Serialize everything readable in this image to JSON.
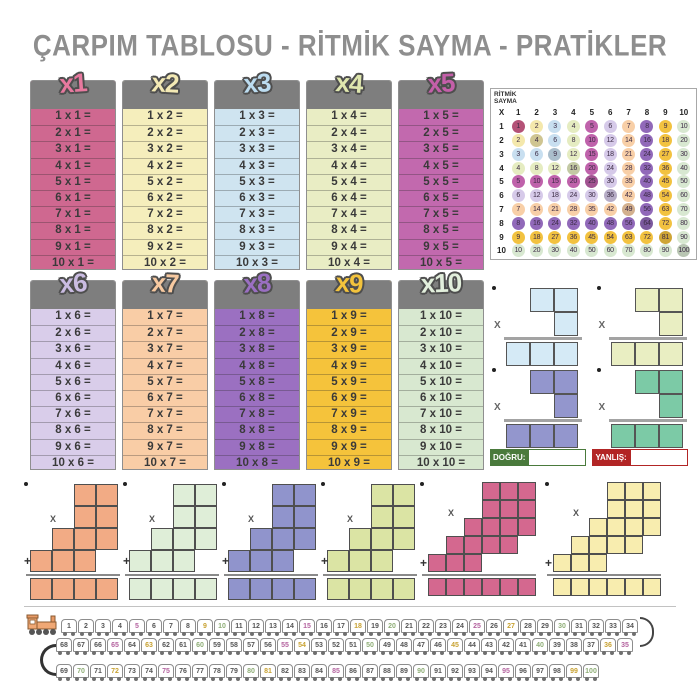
{
  "title": "ÇARPIM TABLOSU - RİTMİK SAYMA - PRATİKLER",
  "cards": [
    {
      "label": "x1",
      "body_color": "#cf6890",
      "label_color": "#e8799f",
      "tilt": -4,
      "rows": [
        "1 x 1 =",
        "2 x 1 =",
        "3 x 1 =",
        "4 x 1 =",
        "5 x 1 =",
        "6 x 1 =",
        "7 x 1 =",
        "8 x 1 =",
        "9 x 1 =",
        "10 x 1 ="
      ]
    },
    {
      "label": "x2",
      "body_color": "#f5eebc",
      "label_color": "#f3e9b4",
      "tilt": 3,
      "rows": [
        "1 x 2 =",
        "2 x 2 =",
        "3 x 2 =",
        "4 x 2 =",
        "5 x 2 =",
        "6 x 2 =",
        "7 x 2 =",
        "8 x 2 =",
        "9 x 2 =",
        "10 x 2 ="
      ]
    },
    {
      "label": "x3",
      "body_color": "#cfe4f0",
      "label_color": "#bcdcf0",
      "tilt": -3,
      "rows": [
        "1 x 3 =",
        "2 x 3 =",
        "3 x 3 =",
        "4 x 3 =",
        "5 x 3 =",
        "6 x 3 =",
        "7 x 3 =",
        "8 x 3 =",
        "9 x 3 =",
        "10 x 3 ="
      ]
    },
    {
      "label": "x4",
      "body_color": "#e9edc4",
      "label_color": "#dfe7ae",
      "tilt": 4,
      "rows": [
        "1 x 4 =",
        "2 x 4 =",
        "3 x 4 =",
        "4 x 4 =",
        "5 x 4 =",
        "6 x 4 =",
        "7 x 4 =",
        "8 x 4 =",
        "9 x 4 =",
        "10 x 4 ="
      ]
    },
    {
      "label": "x5",
      "body_color": "#c269ae",
      "label_color": "#c45fa9",
      "tilt": -3,
      "rows": [
        "1 x 5 =",
        "2 x 5 =",
        "3 x 5 =",
        "4 x 5 =",
        "5 x 5 =",
        "6 x 5 =",
        "7 x 5 =",
        "8 x 5 =",
        "9 x 5 =",
        "10 x 5 ="
      ]
    },
    {
      "label": "x6",
      "body_color": "#d9cdea",
      "label_color": "#cabce2",
      "tilt": -4,
      "rows": [
        "1 x 6 =",
        "2 x 6 =",
        "3 x 6 =",
        "4 x 6 =",
        "5 x 6 =",
        "6 x 6 =",
        "7 x 6 =",
        "8 x 6 =",
        "9 x 6 =",
        "10 x 6 ="
      ]
    },
    {
      "label": "x7",
      "body_color": "#f9cda6",
      "label_color": "#f7c9a0",
      "tilt": 3,
      "rows": [
        "1 x 7 =",
        "2 x 7 =",
        "3 x 7 =",
        "4 x 7 =",
        "5 x 7 =",
        "6 x 7 =",
        "7 x 7 =",
        "8 x 7 =",
        "9 x 7 =",
        "10 x 7 ="
      ]
    },
    {
      "label": "x8",
      "body_color": "#9b70c1",
      "label_color": "#9a6fc2",
      "tilt": -3,
      "rows": [
        "1 x 8 =",
        "2 x 8 =",
        "3 x 8 =",
        "4 x 8 =",
        "5 x 8 =",
        "6 x 8 =",
        "7 x 8 =",
        "8 x 8 =",
        "9 x 8 =",
        "10 x 8 ="
      ]
    },
    {
      "label": "x9",
      "body_color": "#f5c33b",
      "label_color": "#f3c33c",
      "tilt": 4,
      "rows": [
        "1 x 9 =",
        "2 x 9 =",
        "3 x 9 =",
        "4 x 9 =",
        "5 x 9 =",
        "6 x 9 =",
        "7 x 9 =",
        "8 x 9 =",
        "9 x 9 =",
        "10 x 9 ="
      ]
    },
    {
      "label": "x10",
      "body_color": "#d8e8d0",
      "label_color": "#e2efdc",
      "tilt": -2,
      "rows": [
        "1 x 10 =",
        "2 x 10 =",
        "3 x 10 =",
        "4 x 10 =",
        "5 x 10 =",
        "6 x 10 =",
        "7 x 10 =",
        "8 x 10 =",
        "9 x 10 =",
        "10 x 10 ="
      ]
    }
  ],
  "grid": {
    "title_line1": "RİTMİK",
    "title_line2": "SAYMA",
    "corner": "X",
    "headers": [
      1,
      2,
      3,
      4,
      5,
      6,
      7,
      8,
      9,
      10
    ],
    "row_labels": [
      1,
      2,
      3,
      4,
      5,
      6,
      7,
      8,
      9,
      10
    ],
    "values": [
      [
        1,
        2,
        3,
        4,
        5,
        6,
        7,
        8,
        9,
        10
      ],
      [
        2,
        4,
        6,
        8,
        10,
        12,
        14,
        16,
        18,
        20
      ],
      [
        3,
        6,
        9,
        12,
        15,
        18,
        21,
        24,
        27,
        30
      ],
      [
        4,
        8,
        12,
        16,
        20,
        24,
        28,
        32,
        36,
        40
      ],
      [
        5,
        10,
        15,
        20,
        25,
        30,
        35,
        40,
        45,
        50
      ],
      [
        6,
        12,
        18,
        24,
        30,
        36,
        42,
        48,
        54,
        60
      ],
      [
        7,
        14,
        21,
        28,
        35,
        42,
        49,
        56,
        63,
        70
      ],
      [
        8,
        16,
        24,
        32,
        40,
        48,
        56,
        64,
        72,
        80
      ],
      [
        9,
        18,
        27,
        36,
        45,
        54,
        63,
        72,
        81,
        90
      ],
      [
        10,
        20,
        30,
        40,
        50,
        60,
        70,
        80,
        90,
        100
      ]
    ],
    "palette": [
      "#d4608c",
      "#f4e8ac",
      "#c8dff0",
      "#e5ecc1",
      "#bf62ab",
      "#d6cae9",
      "#f8cfa7",
      "#9169b9",
      "#f2c240",
      "#d8e8d1"
    ]
  },
  "puzzles": [
    {
      "color": "#d5eaf6",
      "x_label": "X"
    },
    {
      "color": "#e9eec2",
      "x_label": "X"
    },
    {
      "color": "#9396cd",
      "x_label": "X"
    },
    {
      "color": "#7ccaa6",
      "x_label": "X"
    }
  ],
  "score": {
    "correct_label": "DOĞRU:",
    "wrong_label": "YANLIŞ:",
    "correct_color": "#4a7a3c",
    "wrong_color": "#b22525"
  },
  "stairs": [
    {
      "color": "#f2ab85",
      "size": "small",
      "x_label": "X",
      "plus_label": "+"
    },
    {
      "color": "#dfeed8",
      "size": "small",
      "x_label": "X",
      "plus_label": "+"
    },
    {
      "color": "#9094cc",
      "size": "small",
      "x_label": "X",
      "plus_label": "+"
    },
    {
      "color": "#dbe4a4",
      "size": "small",
      "x_label": "X",
      "plus_label": "+"
    },
    {
      "color": "#d4688f",
      "size": "large",
      "x_label": "X",
      "plus_label": "+"
    },
    {
      "color": "#f8edaf",
      "size": "large",
      "x_label": "X",
      "plus_label": "+"
    }
  ],
  "train": {
    "number_colors": {
      "default": "#555555",
      "mult5": "#b4639f",
      "mult9": "#c8a232",
      "mult10": "#8fae77"
    },
    "rows": [
      {
        "direction": "ltr",
        "has_engine": true,
        "values": [
          1,
          2,
          3,
          4,
          5,
          6,
          7,
          8,
          9,
          10,
          11,
          12,
          13,
          14,
          15,
          16,
          17,
          18,
          19,
          20,
          21,
          22,
          23,
          24,
          25,
          26,
          27,
          28,
          29,
          30,
          31,
          32,
          33,
          34
        ]
      },
      {
        "direction": "rtl",
        "has_engine": false,
        "values": [
          68,
          67,
          66,
          65,
          64,
          63,
          62,
          61,
          60,
          59,
          58,
          57,
          56,
          55,
          54,
          53,
          52,
          51,
          50,
          49,
          48,
          47,
          46,
          45,
          44,
          43,
          42,
          41,
          40,
          39,
          38,
          37,
          36,
          35
        ]
      },
      {
        "direction": "ltr",
        "has_engine": false,
        "values": [
          69,
          70,
          71,
          72,
          73,
          74,
          75,
          76,
          77,
          78,
          79,
          80,
          81,
          82,
          83,
          84,
          85,
          86,
          87,
          88,
          89,
          90,
          91,
          92,
          93,
          94,
          95,
          96,
          97,
          98,
          99,
          100
        ]
      }
    ]
  }
}
